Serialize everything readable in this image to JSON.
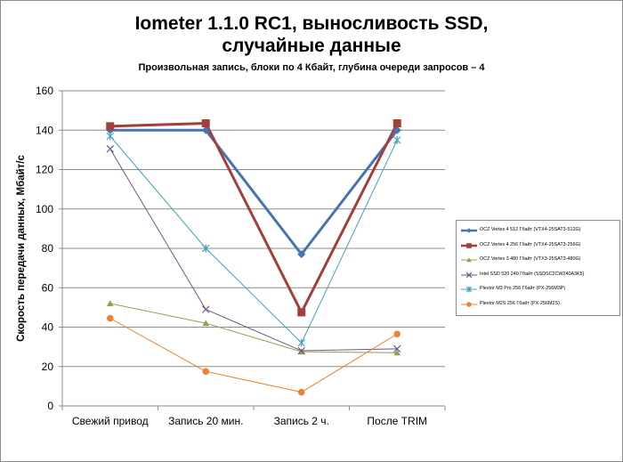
{
  "chart_data": {
    "type": "line",
    "title_line1": "Iometer 1.1.0 RC1, выносливость SSD,",
    "title_line2": "случайные данные",
    "subtitle": "Произвольная  запись, блоки по 4 Кбайт, глубина очереди запросов – 4",
    "ylabel": "Скорость  передачи данных, Мбайт/с",
    "xlabel": "",
    "categories": [
      "Свежий  привод",
      "Запись 20 мин.",
      "Запись 2 ч.",
      "После TRIM"
    ],
    "ylim": [
      0,
      160
    ],
    "yticks": [
      "0",
      "20",
      "40",
      "60",
      "80",
      "100",
      "120",
      "140",
      "160"
    ],
    "grid": true,
    "legend_position": "right",
    "series": [
      {
        "name": "OCZ Vertex  4 512 Гбайт (VTX4-25SAT3-512G)",
        "values": [
          140,
          140,
          77,
          140
        ],
        "color": "#4674b1",
        "marker": "diamond",
        "width": 3
      },
      {
        "name": "OCZ Vertex  4 256 Гбайт (VTX4-25SAT3-256G)",
        "values": [
          142,
          143.5,
          47.5,
          143.5
        ],
        "color": "#a43e3b",
        "marker": "square",
        "width": 3
      },
      {
        "name": "OCZ Vertex  3 480 Гбайт (VTX3-25SAT3-480G)",
        "values": [
          52,
          42,
          27.5,
          27
        ],
        "color": "#89a64e",
        "marker": "triangle",
        "width": 1
      },
      {
        "name": "Intel SSD 520 240 Гбайт (SSDSC2CW240A3K5)",
        "values": [
          130.5,
          49,
          28,
          29
        ],
        "color": "#70558f",
        "marker": "x",
        "width": 1
      },
      {
        "name": "Plextor M3 Pro 256 Гбайт (PX-256M3P)",
        "values": [
          137,
          80,
          32,
          135
        ],
        "color": "#3fa1b7",
        "marker": "star",
        "width": 1
      },
      {
        "name": "Plextor M2S 256 Гбайт (PX-256M2S)",
        "values": [
          44.5,
          17.5,
          7,
          36.5
        ],
        "color": "#e88534",
        "marker": "circle",
        "width": 1
      }
    ]
  }
}
